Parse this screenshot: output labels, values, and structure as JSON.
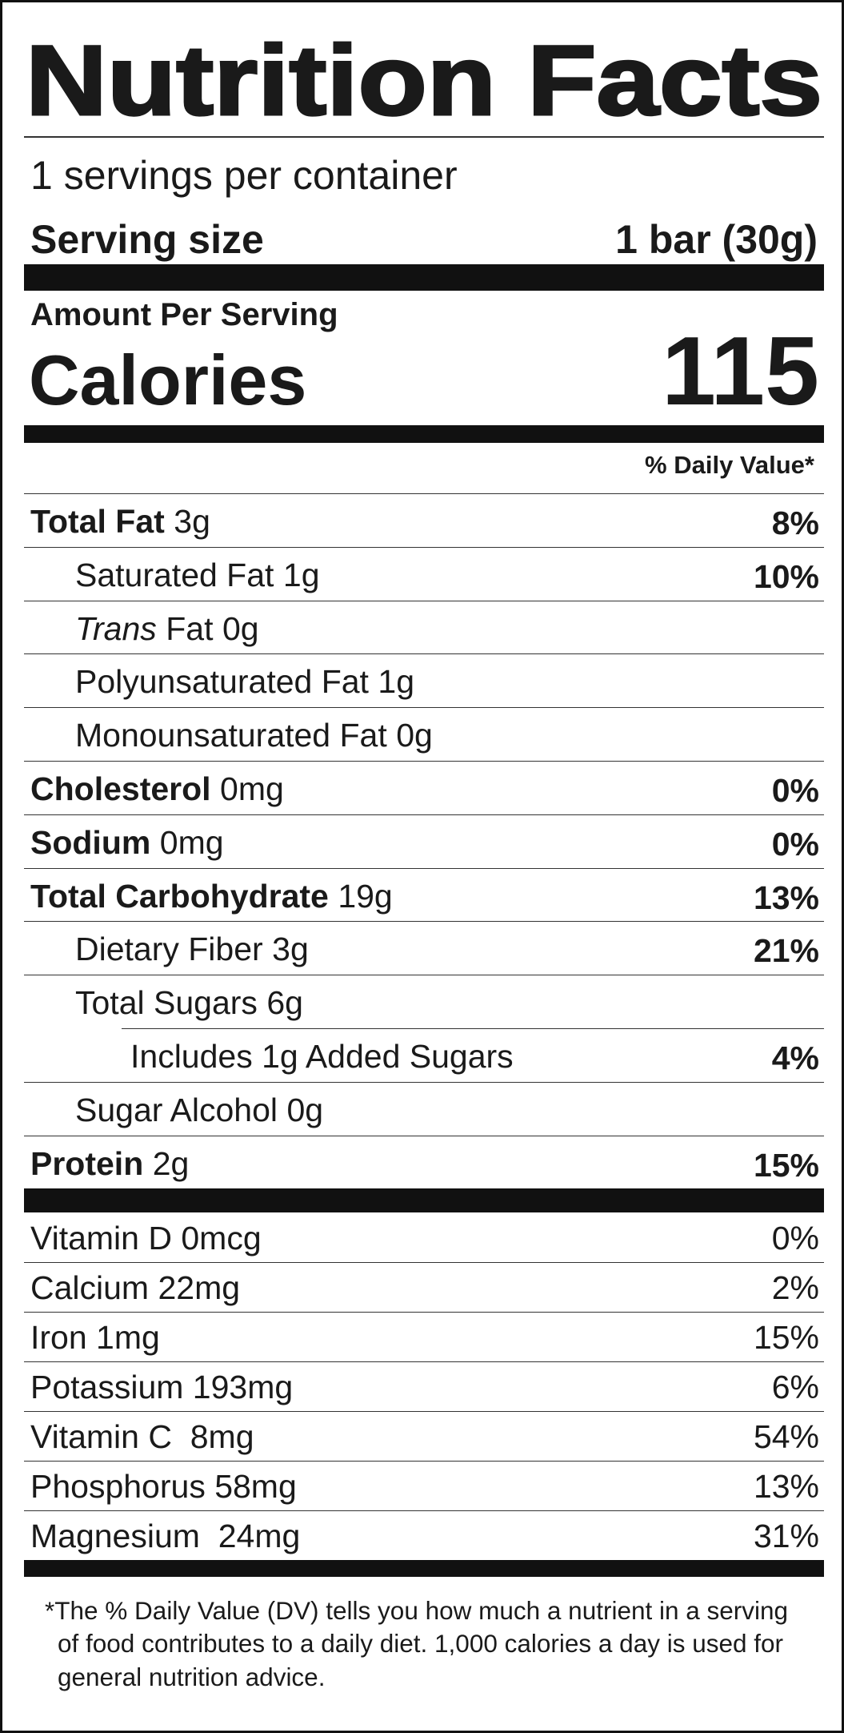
{
  "title": "Nutrition Facts",
  "servings": "1 servings per container",
  "serving_size": {
    "label": "Serving size",
    "value": "1 bar (30g)"
  },
  "amount_per_serving": "Amount Per Serving",
  "calories": {
    "label": "Calories",
    "value": "115"
  },
  "daily_value_header": "% Daily Value*",
  "nutrients": [
    {
      "name": "Total Fat",
      "amount": "3g",
      "dv": "8%",
      "sub": [
        {
          "name": "Saturated Fat",
          "amount": "1g",
          "dv": "10%"
        },
        {
          "name_italic": "Trans",
          "name": "Fat",
          "amount": "0g"
        },
        {
          "name": "Polyunsaturated Fat",
          "amount": "1g"
        },
        {
          "name": "Monounsaturated Fat",
          "amount": "0g"
        }
      ]
    },
    {
      "name": "Cholesterol",
      "amount": "0mg",
      "dv": "0%"
    },
    {
      "name": "Sodium",
      "amount": "0mg",
      "dv": "0%"
    },
    {
      "name": "Total Carbohydrate",
      "amount": "19g",
      "dv": "13%",
      "sub": [
        {
          "name": "Dietary Fiber",
          "amount": "3g",
          "dv": "21%"
        },
        {
          "name": "Total Sugars",
          "amount": "6g",
          "sub": [
            {
              "text": "Includes 1g Added Sugars",
              "dv": "4%"
            }
          ]
        },
        {
          "name": "Sugar Alcohol",
          "amount": "0g"
        }
      ]
    },
    {
      "name": "Protein",
      "amount": "2g",
      "dv": "15%"
    }
  ],
  "vitamins": [
    {
      "name": "Vitamin D 0mcg",
      "dv": "0%"
    },
    {
      "name": "Calcium 22mg",
      "dv": "2%"
    },
    {
      "name": "Iron 1mg",
      "dv": "15%"
    },
    {
      "name": "Potassium 193mg",
      "dv": "6%"
    },
    {
      "name": "Vitamin C  8mg",
      "dv": "54%"
    },
    {
      "name": "Phosphorus 58mg",
      "dv": "13%"
    },
    {
      "name": "Magnesium  24mg",
      "dv": "31%"
    }
  ],
  "footnote": "*The % Daily Value (DV) tells you how much a nutrient in a serving of food contributes to a daily diet. 1,000 calories a day is used for general nutrition advice."
}
